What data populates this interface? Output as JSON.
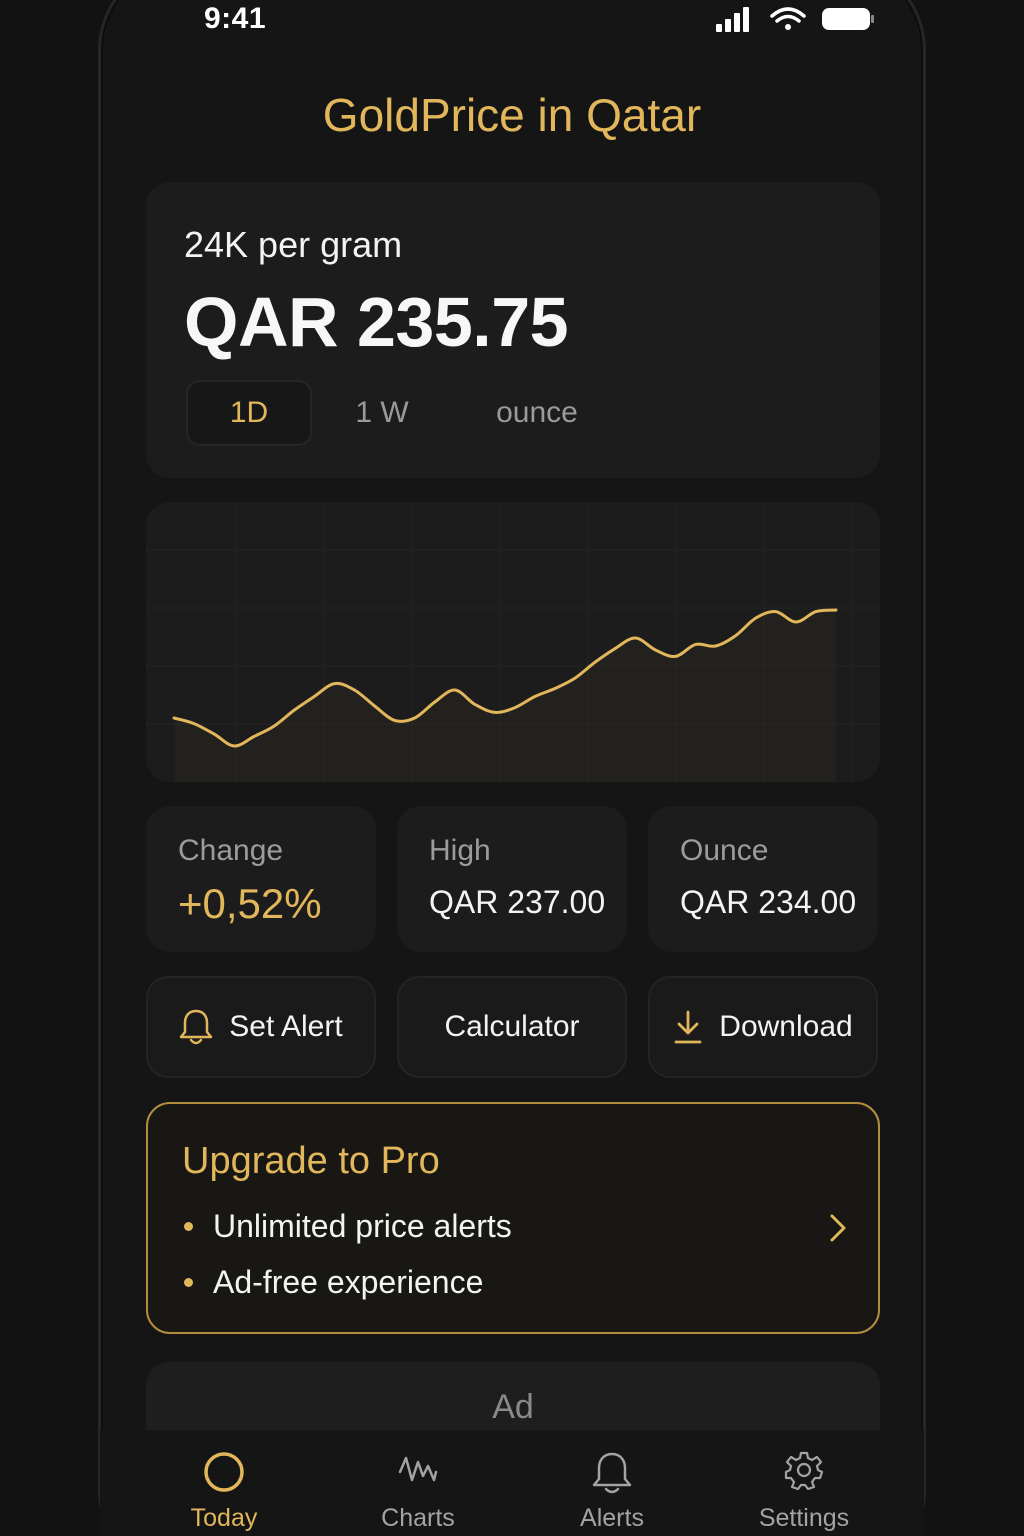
{
  "status_bar": {
    "time": "9:41"
  },
  "app": {
    "title": "GoldPrice in Qatar"
  },
  "price_card": {
    "label": "24K per gram",
    "value": "QAR 235.75",
    "tabs": [
      {
        "label": "1D",
        "active": true
      },
      {
        "label": "1 W",
        "active": false
      },
      {
        "label": "ounce",
        "active": false
      }
    ]
  },
  "chart_data": {
    "type": "line",
    "title": "",
    "xlabel": "",
    "ylabel": "",
    "grid": true,
    "ylim": [
      233.5,
      236.5
    ],
    "series": [
      {
        "color": "#e2b65a",
        "values": [
          234.05,
          233.98,
          233.85,
          233.7,
          233.82,
          233.95,
          234.15,
          234.32,
          234.48,
          234.4,
          234.2,
          234.02,
          234.05,
          234.25,
          234.4,
          234.22,
          234.12,
          234.18,
          234.32,
          234.42,
          234.55,
          234.75,
          234.92,
          235.05,
          234.9,
          234.82,
          234.97,
          234.95,
          235.08,
          235.3,
          235.38,
          235.25,
          235.38,
          235.4
        ]
      }
    ]
  },
  "stats": [
    {
      "label": "Change",
      "value": "+0,52%"
    },
    {
      "label": "High",
      "value": "QAR 237.00"
    },
    {
      "label": "Ounce",
      "value": "QAR 234.00"
    }
  ],
  "actions": {
    "set_alert": {
      "label": "Set Alert",
      "icon": "bell-icon"
    },
    "calculator": {
      "label": "Calculator"
    },
    "download": {
      "label": "Download",
      "icon": "download-icon"
    }
  },
  "pro": {
    "title": "Upgrade to Pro",
    "items": [
      "Unlimited price alerts",
      "Ad-free experience"
    ]
  },
  "ad": {
    "label": "Ad"
  },
  "tabs": [
    {
      "label": "Today",
      "icon": "circle-icon",
      "active": true
    },
    {
      "label": "Charts",
      "icon": "pulse-icon",
      "active": false
    },
    {
      "label": "Alerts",
      "icon": "bell-icon",
      "active": false
    },
    {
      "label": "Settings",
      "icon": "gear-icon",
      "active": false
    }
  ],
  "colors": {
    "accent": "#e2b65a",
    "background": "#121212",
    "card": "#1c1c1c"
  }
}
